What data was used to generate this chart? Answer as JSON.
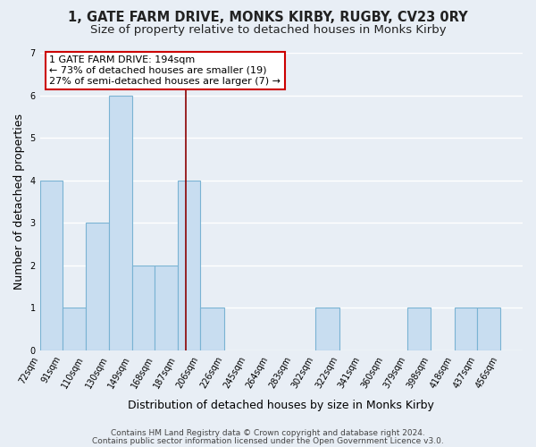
{
  "title": "1, GATE FARM DRIVE, MONKS KIRBY, RUGBY, CV23 0RY",
  "subtitle": "Size of property relative to detached houses in Monks Kirby",
  "xlabel": "Distribution of detached houses by size in Monks Kirby",
  "ylabel": "Number of detached properties",
  "bar_left_edges": [
    72,
    91,
    110,
    130,
    149,
    168,
    187,
    206,
    226,
    245,
    264,
    283,
    302,
    322,
    341,
    360,
    379,
    398,
    418,
    437
  ],
  "bar_widths": [
    19,
    19,
    20,
    19,
    19,
    19,
    19,
    20,
    19,
    19,
    19,
    19,
    20,
    19,
    19,
    19,
    19,
    20,
    19,
    19
  ],
  "bar_heights": [
    4,
    1,
    3,
    6,
    2,
    2,
    4,
    1,
    0,
    0,
    0,
    0,
    1,
    0,
    0,
    0,
    1,
    0,
    1,
    1
  ],
  "bar_color": "#c8ddf0",
  "bar_edgecolor": "#7ab3d3",
  "vline_x": 194,
  "vline_color": "#8b0000",
  "ylim": [
    0,
    7
  ],
  "yticks": [
    0,
    1,
    2,
    3,
    4,
    5,
    6,
    7
  ],
  "xlim_left": 72,
  "xlim_right": 475,
  "xtick_labels": [
    "72sqm",
    "91sqm",
    "110sqm",
    "130sqm",
    "149sqm",
    "168sqm",
    "187sqm",
    "206sqm",
    "226sqm",
    "245sqm",
    "264sqm",
    "283sqm",
    "302sqm",
    "322sqm",
    "341sqm",
    "360sqm",
    "379sqm",
    "398sqm",
    "418sqm",
    "437sqm",
    "456sqm"
  ],
  "xtick_positions": [
    72,
    91,
    110,
    130,
    149,
    168,
    187,
    206,
    226,
    245,
    264,
    283,
    302,
    322,
    341,
    360,
    379,
    398,
    418,
    437,
    456
  ],
  "annotation_lines": [
    "1 GATE FARM DRIVE: 194sqm",
    "← 73% of detached houses are smaller (19)",
    "27% of semi-detached houses are larger (7) →"
  ],
  "annotation_box_edgecolor": "#cc0000",
  "annotation_box_facecolor": "#ffffff",
  "footer_line1": "Contains HM Land Registry data © Crown copyright and database right 2024.",
  "footer_line2": "Contains public sector information licensed under the Open Government Licence v3.0.",
  "bg_color": "#e8eef5",
  "plot_bg_color": "#e8eef5",
  "grid_color": "#ffffff",
  "title_fontsize": 10.5,
  "subtitle_fontsize": 9.5,
  "axis_label_fontsize": 9,
  "tick_fontsize": 7,
  "annotation_fontsize": 8,
  "footer_fontsize": 6.5
}
